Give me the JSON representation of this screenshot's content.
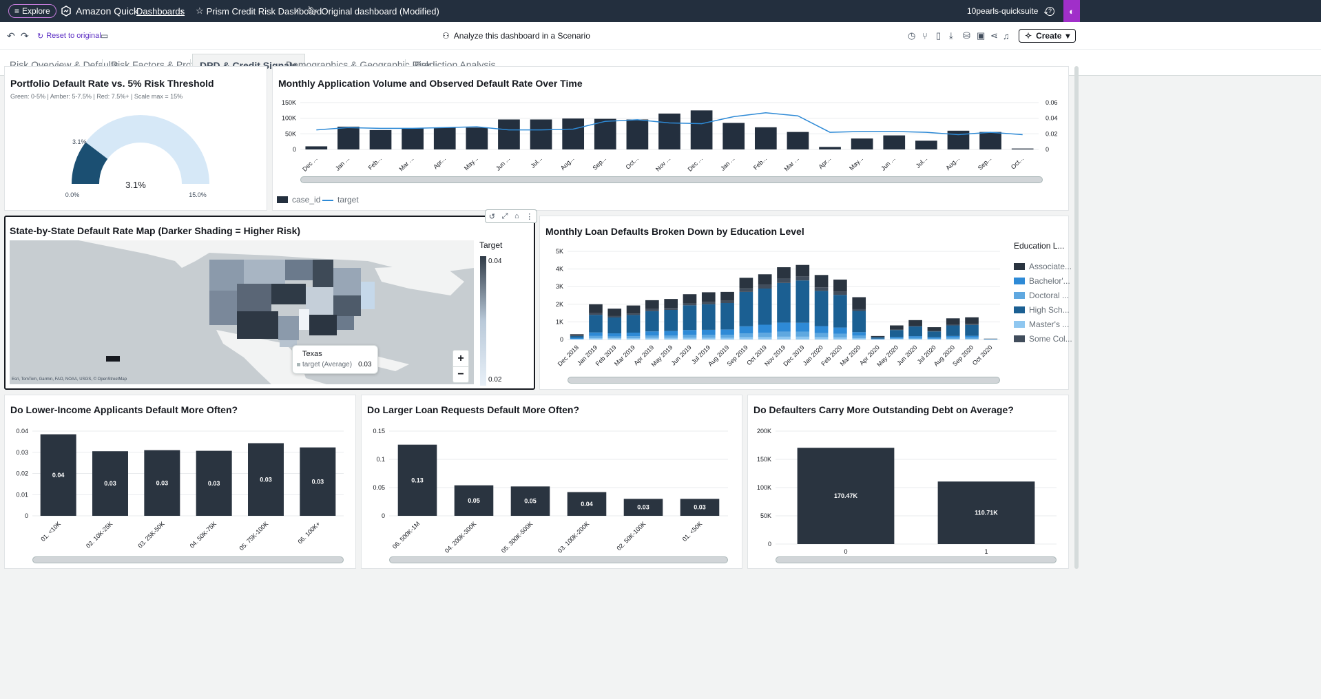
{
  "topbar": {
    "explore": "Explore",
    "app_name": "Amazon Quick",
    "dashboards": "Dashboards",
    "dashboard_name": "Prism Credit Risk Dashboard",
    "version": "Original dashboard (Modified)",
    "account": "10pearls-quicksuite"
  },
  "toolbar": {
    "reset": "Reset to original",
    "scenario": "Analyze this dashboard in a Scenario",
    "create": "Create"
  },
  "tabs": [
    "Risk Overview & Defaults",
    "Risk Factors & Profile",
    "DPD & Credit Signals",
    "Demographics & Geographic Risk",
    "Prediction Analysis"
  ],
  "gauge": {
    "title": "Portfolio Default Rate vs. 5% Risk Threshold",
    "subtitle": "Green: 0-5% | Amber: 5-7.5% | Red: 7.5%+ | Scale max = 15%",
    "value_label": "3.1%",
    "center_label": "3.1%",
    "min_label": "0.0%",
    "max_label": "15.0%",
    "value": 3.1,
    "max": 15,
    "fill_color": "#1b4f72",
    "track_color": "#d6e8f7"
  },
  "monthly": {
    "title": "Monthly Application Volume and Observed Default Rate Over Time",
    "legend_bar": "case_id",
    "legend_line": "target"
  },
  "map": {
    "title": "State-by-State Default Rate Map (Darker Shading = Higher Risk)",
    "legend_title": "Target",
    "legend_max": "0.04",
    "legend_min": "0.02",
    "tooltip_state": "Texas",
    "tooltip_label": "target (Average)",
    "tooltip_value": "0.03",
    "attribution": "Esri, TomTom, Garmin, FAO, NOAA, USGS, © OpenStreetMap",
    "zoom_in": "+",
    "zoom_out": "−"
  },
  "education": {
    "title": "Monthly Loan Defaults Broken Down by Education Level",
    "legend_title": "Education L...",
    "legend": [
      "Associate...",
      "Bachelor'...",
      "Doctoral ...",
      "High Sch...",
      "Master's ...",
      "Some Col..."
    ]
  },
  "income": {
    "title": "Do Lower-Income Applicants Default More Often?"
  },
  "loan": {
    "title": "Do Larger Loan Requests Default More Often?"
  },
  "debt": {
    "title": "Do Defaulters Carry More Outstanding Debt on Average?"
  },
  "chart_data": [
    {
      "id": "monthly",
      "type": "bar",
      "categories": [
        "Dec ...",
        "Jan ...",
        "Feb...",
        "Mar ...",
        "Apr...",
        "May...",
        "Jun ...",
        "Jul...",
        "Aug...",
        "Sep...",
        "Oct...",
        "Nov ...",
        "Dec ...",
        "Jan ...",
        "Feb...",
        "Mar ...",
        "Apr...",
        "May...",
        "Jun ...",
        "Jul...",
        "Aug...",
        "Sep...",
        "Oct..."
      ],
      "series": [
        {
          "name": "case_id",
          "type": "bar",
          "axis": "left",
          "color": "#232f3e",
          "values": [
            10000,
            73000,
            62000,
            68000,
            70000,
            70000,
            96000,
            96000,
            99000,
            98000,
            96000,
            115000,
            125000,
            85000,
            71000,
            56000,
            8000,
            35000,
            45000,
            28000,
            60000,
            56000,
            3000
          ]
        },
        {
          "name": "target",
          "type": "line",
          "axis": "right",
          "color": "#2e8ad6",
          "values": [
            0.025,
            0.028,
            0.027,
            0.027,
            0.028,
            0.029,
            0.025,
            0.025,
            0.026,
            0.036,
            0.038,
            0.034,
            0.033,
            0.042,
            0.047,
            0.043,
            0.022,
            0.023,
            0.023,
            0.022,
            0.019,
            0.022,
            0.019
          ]
        }
      ],
      "ylim": [
        0,
        150000
      ],
      "y2lim": [
        0,
        0.06
      ],
      "yticks": [
        "0",
        "50K",
        "100K",
        "150K"
      ],
      "y2ticks": [
        "0",
        "0.02",
        "0.04",
        "0.06"
      ],
      "legend": "bottom-left"
    },
    {
      "id": "education",
      "type": "bar",
      "stacked": true,
      "categories": [
        "Dec 2018",
        "Jan 2019",
        "Feb 2019",
        "Mar 2019",
        "Apr 2019",
        "May 2019",
        "Jun 2019",
        "Jul 2019",
        "Aug 2019",
        "Sep 2019",
        "Oct 2019",
        "Nov 2019",
        "Dec 2019",
        "Jan 2020",
        "Feb 2020",
        "Mar 2020",
        "Apr 2020",
        "May 2020",
        "Jun 2020",
        "Jul 2020",
        "Aug 2020",
        "Sep 2020",
        "Oct 2020"
      ],
      "series": [
        {
          "name": "Master's",
          "color": "#8fc7f0",
          "values": [
            20,
            80,
            70,
            80,
            90,
            90,
            100,
            100,
            100,
            130,
            140,
            160,
            160,
            130,
            120,
            80,
            10,
            30,
            40,
            20,
            40,
            40,
            5
          ]
        },
        {
          "name": "Doctoral",
          "color": "#5fa8e0",
          "values": [
            20,
            120,
            100,
            110,
            130,
            130,
            160,
            160,
            170,
            220,
            240,
            280,
            290,
            230,
            210,
            140,
            10,
            50,
            60,
            40,
            70,
            70,
            5
          ]
        },
        {
          "name": "Bachelor's",
          "color": "#2e8ad6",
          "values": [
            60,
            200,
            180,
            200,
            240,
            260,
            280,
            290,
            300,
            400,
            460,
            520,
            500,
            400,
            350,
            200,
            30,
            60,
            90,
            70,
            90,
            100,
            10
          ]
        },
        {
          "name": "High School",
          "color": "#1b5f92",
          "values": [
            100,
            1000,
            900,
            1000,
            1150,
            1200,
            1400,
            1450,
            1500,
            1950,
            2050,
            2250,
            2400,
            2000,
            1850,
            1200,
            80,
            400,
            550,
            330,
            600,
            620,
            20
          ]
        },
        {
          "name": "Some College",
          "color": "#414d5c",
          "values": [
            20,
            100,
            80,
            90,
            120,
            110,
            130,
            140,
            130,
            200,
            220,
            250,
            230,
            200,
            190,
            100,
            10,
            30,
            40,
            30,
            60,
            70,
            5
          ]
        },
        {
          "name": "Associate",
          "color": "#2a3440",
          "values": [
            80,
            500,
            420,
            450,
            500,
            510,
            500,
            540,
            500,
            600,
            590,
            640,
            650,
            700,
            680,
            680,
            60,
            230,
            320,
            210,
            340,
            360,
            5
          ]
        }
      ],
      "ylim": [
        0,
        5000
      ],
      "yticks": [
        "0",
        "1K",
        "2K",
        "3K",
        "4K",
        "5K"
      ]
    },
    {
      "id": "income",
      "type": "bar",
      "categories": [
        "01. <10K",
        "02. 10K-25K",
        "03. 25K-50K",
        "04. 50K-75K",
        "05. 75K-100K",
        "06. 100K+"
      ],
      "values": [
        0.0385,
        0.0305,
        0.031,
        0.0307,
        0.0343,
        0.0323
      ],
      "data_labels": [
        "0.04",
        "0.03",
        "0.03",
        "0.03",
        "0.03",
        "0.03"
      ],
      "ylim": [
        0,
        0.04
      ],
      "yticks": [
        "0",
        "0.01",
        "0.02",
        "0.03",
        "0.04"
      ]
    },
    {
      "id": "loan",
      "type": "bar",
      "categories": [
        "06. 500K-1M",
        "04. 200K-300K",
        "05. 300K-500K",
        "03. 100K-200K",
        "02. 50K-100K",
        "01. <50K"
      ],
      "values": [
        0.126,
        0.054,
        0.052,
        0.042,
        0.03,
        0.03
      ],
      "data_labels": [
        "0.13",
        "0.05",
        "0.05",
        "0.04",
        "0.03",
        "0.03"
      ],
      "ylim": [
        0,
        0.15
      ],
      "yticks": [
        "0",
        "0.05",
        "0.1",
        "0.15"
      ]
    },
    {
      "id": "debt",
      "type": "bar",
      "categories": [
        "0",
        "1"
      ],
      "values": [
        170470,
        110710
      ],
      "data_labels": [
        "170.47K",
        "110.71K"
      ],
      "ylim": [
        0,
        200000
      ],
      "yticks": [
        "0",
        "50K",
        "100K",
        "150K",
        "200K"
      ]
    }
  ]
}
